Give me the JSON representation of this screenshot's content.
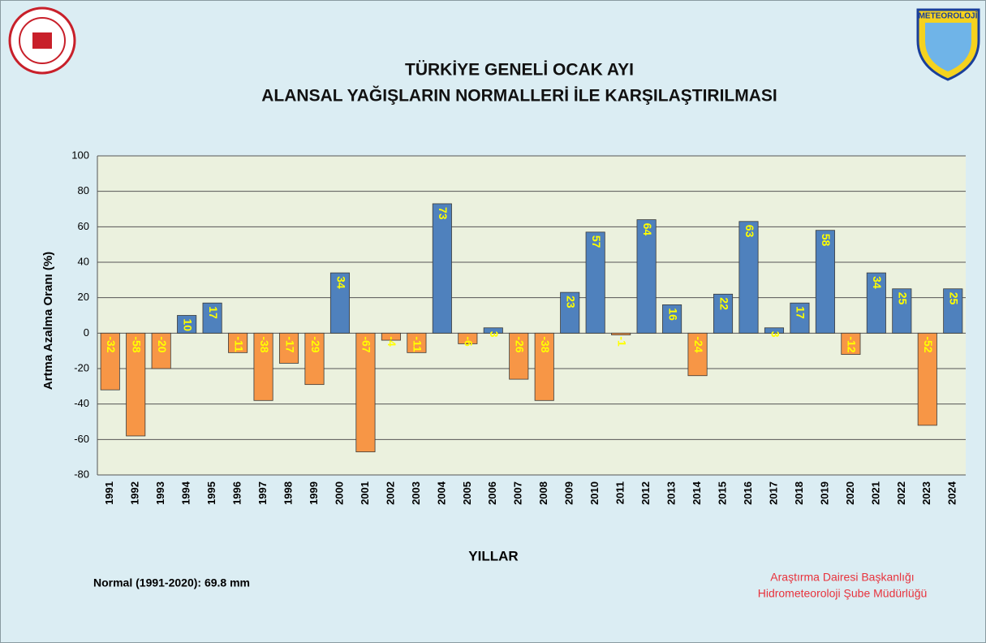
{
  "chart_data": {
    "type": "bar",
    "title": "TÜRKİYE GENELİ  OCAK AYI",
    "subtitle": "ALANSAL YAĞIŞLARIN NORMALLERİ İLE KARŞILAŞTIRILMASI",
    "y_label": "Artma Azalma Oranı (%)",
    "x_label": "YILLAR",
    "note": "Normal (1991-2020): 69.8 mm",
    "credit_1": "Araştırma Dairesi Başkanlığı",
    "credit_2": "Hidrometeoroloji Şube Müdürlüğü",
    "logo_text": "METEOROLOJİ",
    "categories": [
      "1991",
      "1992",
      "1993",
      "1994",
      "1995",
      "1996",
      "1997",
      "1998",
      "1999",
      "2000",
      "2001",
      "2002",
      "2003",
      "2004",
      "2005",
      "2006",
      "2007",
      "2008",
      "2009",
      "2010",
      "2011",
      "2012",
      "2013",
      "2014",
      "2015",
      "2016",
      "2017",
      "2018",
      "2019",
      "2020",
      "2021",
      "2022",
      "2023",
      "2024"
    ],
    "values": [
      -32,
      -58,
      -20,
      10,
      17,
      -11,
      -38,
      -17,
      -29,
      34,
      -67,
      -4,
      -11,
      73,
      -6,
      3,
      -26,
      -38,
      23,
      57,
      -1,
      64,
      16,
      -24,
      22,
      63,
      3,
      17,
      58,
      -12,
      34,
      25,
      -52,
      25
    ],
    "colors": {
      "positive": "#4f81bd",
      "negative": "#f79646"
    },
    "label_color": "#ffff00",
    "ylim": [
      -80,
      100
    ],
    "yticks": [
      -80,
      -60,
      -40,
      -20,
      0,
      20,
      40,
      60,
      80,
      100
    ],
    "grid": true
  }
}
